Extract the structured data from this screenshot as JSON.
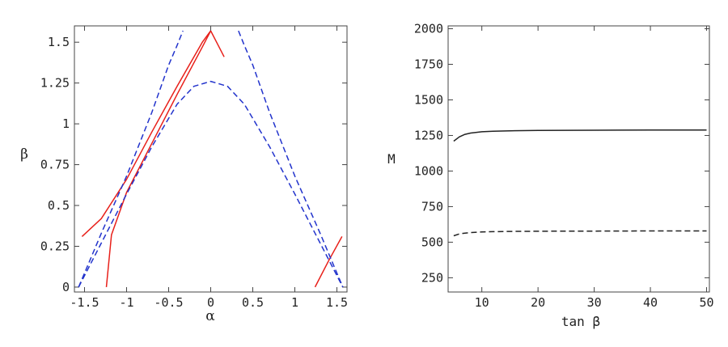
{
  "chart_data": [
    {
      "type": "line",
      "xlabel": "α",
      "ylabel": "β",
      "xlim": [
        -1.62,
        1.62
      ],
      "ylim": [
        -0.03,
        1.6
      ],
      "xticks": [
        -1.5,
        -1,
        -0.5,
        0,
        0.5,
        1,
        1.5
      ],
      "xtick_labels": [
        "-1.5",
        "-1",
        "-0.5",
        "0",
        "0.5",
        "1",
        "1.5"
      ],
      "yticks": [
        0,
        0.25,
        0.5,
        0.75,
        1,
        1.25,
        1.5
      ],
      "ytick_labels": [
        "0",
        "0.25",
        "0.5",
        "0.75",
        "1",
        "1.25",
        "1.5"
      ],
      "grid": false,
      "legend": "none",
      "series": [
        {
          "style": "solid",
          "color": "#e8201a",
          "x": [
            -1.53,
            -1.3,
            -1.0,
            -0.7,
            -0.4,
            -0.1,
            0.0
          ],
          "y": [
            0.31,
            0.42,
            0.66,
            0.95,
            1.23,
            1.5,
            1.57
          ]
        },
        {
          "style": "solid",
          "color": "#e8201a",
          "x": [
            -1.24,
            -1.18,
            -1.0,
            -0.7,
            -0.4,
            -0.1,
            0.0
          ],
          "y": [
            0.0,
            0.32,
            0.58,
            0.88,
            1.18,
            1.47,
            1.57
          ]
        },
        {
          "style": "solid",
          "color": "#e8201a",
          "x": [
            0.0,
            0.08,
            0.16
          ],
          "y": [
            1.57,
            1.49,
            1.41
          ]
        },
        {
          "style": "solid",
          "color": "#e8201a",
          "x": [
            1.24,
            1.4,
            1.56
          ],
          "y": [
            0.0,
            0.16,
            0.31
          ]
        },
        {
          "style": "dashed",
          "color": "#2233cc",
          "x": [
            -1.57,
            -1.3,
            -1.0,
            -0.7,
            -0.4,
            -0.2,
            0.0,
            0.2,
            0.4,
            0.7,
            1.0,
            1.3,
            1.57
          ],
          "y": [
            0.0,
            0.27,
            0.57,
            0.86,
            1.12,
            1.23,
            1.26,
            1.23,
            1.12,
            0.86,
            0.57,
            0.27,
            0.0
          ]
        },
        {
          "style": "dashed",
          "color": "#2233cc",
          "x": [
            -1.57,
            -1.3,
            -1.0,
            -0.7,
            -0.5,
            -0.4,
            -0.33
          ],
          "y": [
            0.0,
            0.33,
            0.68,
            1.07,
            1.36,
            1.48,
            1.57
          ]
        },
        {
          "style": "dashed",
          "color": "#2233cc",
          "x": [
            0.33,
            0.4,
            0.5,
            0.7,
            1.0,
            1.3,
            1.57
          ],
          "y": [
            1.57,
            1.48,
            1.36,
            1.07,
            0.68,
            0.33,
            0.0
          ]
        }
      ]
    },
    {
      "type": "line",
      "xlabel": "tan β",
      "ylabel": "M",
      "xlim": [
        4,
        50.5
      ],
      "ylim": [
        150,
        2020
      ],
      "xticks": [
        10,
        20,
        30,
        40,
        50
      ],
      "xtick_labels": [
        "10",
        "20",
        "30",
        "40",
        "50"
      ],
      "yticks": [
        250,
        500,
        750,
        1000,
        1250,
        1500,
        1750,
        2000
      ],
      "ytick_labels": [
        "250",
        "500",
        "750",
        "1000",
        "1250",
        "1500",
        "1750",
        "2000"
      ],
      "grid": false,
      "legend": "none",
      "series": [
        {
          "style": "solid",
          "color": "#222222",
          "x": [
            5,
            6,
            7,
            8,
            10,
            12,
            15,
            20,
            25,
            30,
            40,
            50
          ],
          "y": [
            1210,
            1240,
            1258,
            1267,
            1276,
            1280,
            1283,
            1285,
            1286,
            1287,
            1288,
            1288
          ]
        },
        {
          "style": "dashed",
          "color": "#222222",
          "x": [
            5,
            6,
            7,
            8,
            10,
            12,
            15,
            20,
            25,
            30,
            40,
            50
          ],
          "y": [
            545,
            558,
            564,
            568,
            572,
            574,
            576,
            577,
            578,
            578,
            579,
            579
          ]
        }
      ]
    }
  ]
}
